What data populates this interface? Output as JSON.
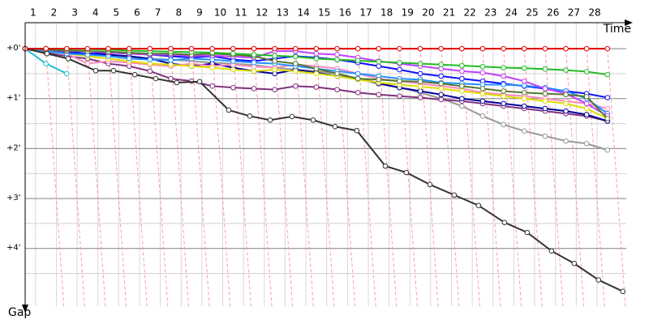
{
  "chart_data": {
    "type": "line",
    "x_label": "Time",
    "y_label": "Gap",
    "x": [
      0,
      1,
      2,
      3,
      4,
      5,
      6,
      7,
      8,
      9,
      10,
      11,
      12,
      13,
      14,
      15,
      16,
      17,
      18,
      19,
      20,
      21,
      22,
      23,
      24,
      25,
      26,
      27,
      28
    ],
    "xlim": [
      0,
      29.1
    ],
    "xticks": [
      {
        "value": 0.5,
        "label": "1"
      },
      {
        "value": 1.5,
        "label": "2"
      },
      {
        "value": 2.5,
        "label": "3"
      },
      {
        "value": 3.5,
        "label": "4"
      },
      {
        "value": 4.5,
        "label": "5"
      },
      {
        "value": 5.5,
        "label": "6"
      },
      {
        "value": 6.5,
        "label": "7"
      },
      {
        "value": 7.5,
        "label": "8"
      },
      {
        "value": 8.5,
        "label": "9"
      },
      {
        "value": 9.5,
        "label": "10"
      },
      {
        "value": 10.5,
        "label": "11"
      },
      {
        "value": 11.5,
        "label": "12"
      },
      {
        "value": 12.5,
        "label": "13"
      },
      {
        "value": 13.5,
        "label": "14"
      },
      {
        "value": 14.5,
        "label": "15"
      },
      {
        "value": 15.5,
        "label": "16"
      },
      {
        "value": 16.5,
        "label": "17"
      },
      {
        "value": 17.5,
        "label": "18"
      },
      {
        "value": 18.5,
        "label": "19"
      },
      {
        "value": 19.5,
        "label": "20"
      },
      {
        "value": 20.5,
        "label": "21"
      },
      {
        "value": 21.5,
        "label": "22"
      },
      {
        "value": 22.5,
        "label": "23"
      },
      {
        "value": 23.5,
        "label": "24"
      },
      {
        "value": 24.5,
        "label": "25"
      },
      {
        "value": 25.5,
        "label": "26"
      },
      {
        "value": 26.5,
        "label": "27"
      },
      {
        "value": 27.5,
        "label": "28"
      }
    ],
    "ylim": [
      -0.52,
      5.35
    ],
    "yticks": [
      {
        "value": 0,
        "label": "+0'"
      },
      {
        "value": 1,
        "label": "+1'"
      },
      {
        "value": 2,
        "label": "+2'"
      },
      {
        "value": 3,
        "label": "+3'"
      },
      {
        "value": 4,
        "label": "+4'"
      }
    ],
    "yminor_ticks": [
      0.5,
      1.5,
      2.5,
      3.5,
      4.5
    ],
    "y_inverted": true,
    "grid": true,
    "series": [
      {
        "color": "#999999",
        "values": [
          0,
          0.05,
          0.1,
          0.12,
          0.15,
          0.18,
          0.2,
          0.22,
          0.25,
          0.28,
          0.3,
          0.33,
          0.38,
          0.42,
          0.45,
          0.5,
          0.6,
          0.68,
          0.78,
          0.88,
          1.0,
          1.15,
          1.35,
          1.52,
          1.65,
          1.75,
          1.85,
          1.9,
          2.03
        ]
      },
      {
        "color": "#803080",
        "values": [
          0,
          0.08,
          0.15,
          0.2,
          0.3,
          0.35,
          0.45,
          0.6,
          0.65,
          0.75,
          0.78,
          0.8,
          0.82,
          0.75,
          0.77,
          0.82,
          0.88,
          0.92,
          0.95,
          0.98,
          1.02,
          1.05,
          1.1,
          1.15,
          1.2,
          1.25,
          1.3,
          1.35,
          1.45
        ]
      },
      {
        "color": "#000099",
        "values": [
          0,
          0.05,
          0.08,
          0.1,
          0.12,
          0.15,
          0.2,
          0.3,
          0.35,
          0.3,
          0.38,
          0.45,
          0.5,
          0.42,
          0.48,
          0.55,
          0.6,
          0.7,
          0.78,
          0.85,
          0.92,
          1.0,
          1.05,
          1.1,
          1.15,
          1.2,
          1.25,
          1.32,
          1.45
        ]
      },
      {
        "color": "#1010ff",
        "values": [
          0,
          0.05,
          0.06,
          0.1,
          0.08,
          0.1,
          0.12,
          0.15,
          0.18,
          0.15,
          0.22,
          0.25,
          0.2,
          0.15,
          0.18,
          0.22,
          0.28,
          0.35,
          0.42,
          0.5,
          0.55,
          0.6,
          0.65,
          0.7,
          0.75,
          0.8,
          0.85,
          0.9,
          0.98
        ]
      },
      {
        "color": "#ff88bb",
        "values": [
          0,
          0.05,
          0.1,
          0.3,
          0.25,
          0.28,
          0.32,
          0.35,
          0.3,
          0.35,
          0.32,
          0.36,
          0.38,
          0.32,
          0.35,
          0.4,
          0.5,
          0.6,
          0.65,
          0.7,
          0.75,
          0.8,
          0.88,
          0.92,
          0.95,
          1.0,
          1.05,
          1.1,
          1.2
        ]
      },
      {
        "color": "#dddd00",
        "values": [
          0,
          0.05,
          0.1,
          0.15,
          0.2,
          0.25,
          0.3,
          0.32,
          0.35,
          0.38,
          0.42,
          0.45,
          0.42,
          0.45,
          0.5,
          0.55,
          0.62,
          0.68,
          0.72,
          0.76,
          0.8,
          0.85,
          0.9,
          0.95,
          1.0,
          1.05,
          1.1,
          1.2,
          1.4
        ]
      },
      {
        "color": "#2090ff",
        "values": [
          0,
          0.05,
          0.1,
          0.12,
          0.15,
          0.2,
          0.22,
          0.23,
          0.2,
          0.22,
          0.25,
          0.28,
          0.3,
          0.35,
          0.4,
          0.45,
          0.5,
          0.55,
          0.6,
          0.62,
          0.68,
          0.7,
          0.72,
          0.72,
          0.74,
          0.78,
          0.85,
          1.0,
          1.3
        ]
      },
      {
        "color": "#c040ff",
        "values": [
          0,
          0.02,
          0.05,
          0.05,
          0.08,
          0.1,
          0.12,
          0.12,
          0.14,
          0.14,
          0.16,
          0.18,
          0.05,
          0.05,
          0.1,
          0.12,
          0.18,
          0.25,
          0.3,
          0.35,
          0.4,
          0.45,
          0.48,
          0.55,
          0.65,
          0.8,
          0.9,
          1.1,
          1.35
        ]
      },
      {
        "color": "#557733",
        "values": [
          0,
          0.02,
          0.04,
          0.05,
          0.06,
          0.08,
          0.1,
          0.1,
          0.12,
          0.1,
          0.12,
          0.15,
          0.25,
          0.3,
          0.4,
          0.5,
          0.6,
          0.62,
          0.65,
          0.66,
          0.7,
          0.75,
          0.8,
          0.85,
          0.88,
          0.9,
          0.92,
          0.96,
          1.4
        ]
      },
      {
        "color": "#22bb22",
        "values": [
          0,
          0,
          0.01,
          0.01,
          0.02,
          0.04,
          0.05,
          0.06,
          0.07,
          0.08,
          0.1,
          0.12,
          0.14,
          0.16,
          0.2,
          0.22,
          0.24,
          0.26,
          0.28,
          0.3,
          0.32,
          0.34,
          0.36,
          0.38,
          0.39,
          0.41,
          0.43,
          0.46,
          0.52
        ]
      },
      {
        "color": "#20c0d0",
        "values": [
          0,
          0.3,
          0.5,
          null,
          null,
          null,
          null,
          null,
          null,
          null,
          null,
          null,
          null,
          null,
          null,
          null,
          null,
          null,
          null,
          null,
          null,
          null,
          null,
          null,
          null,
          null,
          null,
          null,
          null
        ]
      },
      {
        "color": "#333333",
        "x": [
          0,
          1.05,
          2.07,
          3.39,
          4.25,
          5.27,
          6.28,
          7.29,
          8.39,
          9.79,
          10.8,
          11.78,
          12.83,
          13.85,
          14.9,
          15.95,
          17.32,
          18.33,
          19.46,
          20.63,
          21.8,
          23.05,
          24.14,
          25.31,
          26.4,
          27.57,
          28.74
        ],
        "values": [
          0,
          0.1,
          0.2,
          0.44,
          0.44,
          0.52,
          0.6,
          0.68,
          0.66,
          1.23,
          1.35,
          1.43,
          1.36,
          1.43,
          1.56,
          1.64,
          2.35,
          2.48,
          2.72,
          2.93,
          3.14,
          3.48,
          3.68,
          4.05,
          4.3,
          4.63,
          4.86
        ]
      },
      {
        "color": "#e00000",
        "values": [
          0,
          0,
          0,
          0,
          0,
          0,
          0,
          0,
          0,
          0,
          0,
          0,
          0,
          0,
          0,
          0,
          0,
          0,
          0,
          0,
          0,
          0,
          0,
          0,
          0,
          0,
          0,
          0,
          0
        ]
      }
    ]
  }
}
